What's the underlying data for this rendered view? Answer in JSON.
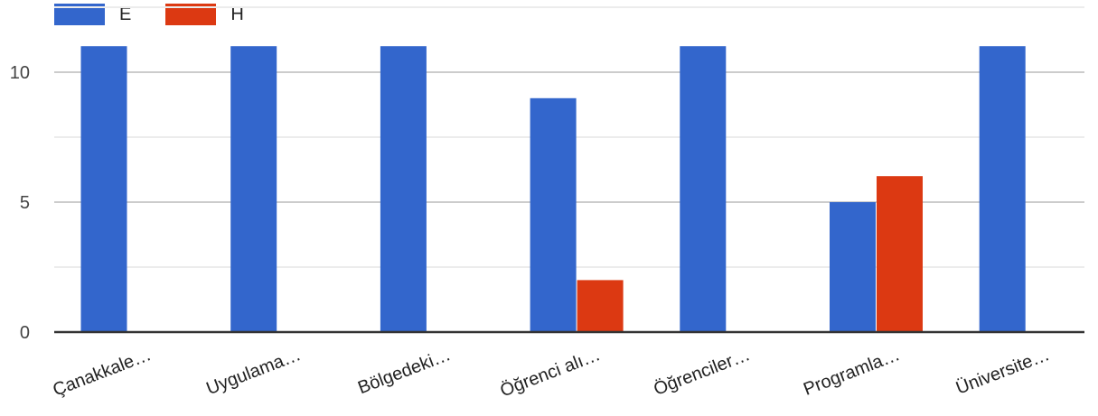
{
  "chart_data": {
    "type": "bar",
    "categories": [
      "Çanakkale…",
      "Uygulama…",
      "Bölgedeki…",
      "Öğrenci alı…",
      "Öğrenciler…",
      "Programla…",
      "Üniversite…"
    ],
    "series": [
      {
        "name": "E",
        "color": "#3366cc",
        "values": [
          11,
          11,
          11,
          9,
          11,
          5,
          11
        ]
      },
      {
        "name": "H",
        "color": "#dc3912",
        "values": [
          0,
          0,
          0,
          2,
          0,
          6,
          0
        ]
      }
    ],
    "yticks": [
      0,
      5,
      10
    ],
    "ylim": [
      0,
      12.5
    ],
    "grid": true,
    "legend_position": "top-left"
  }
}
